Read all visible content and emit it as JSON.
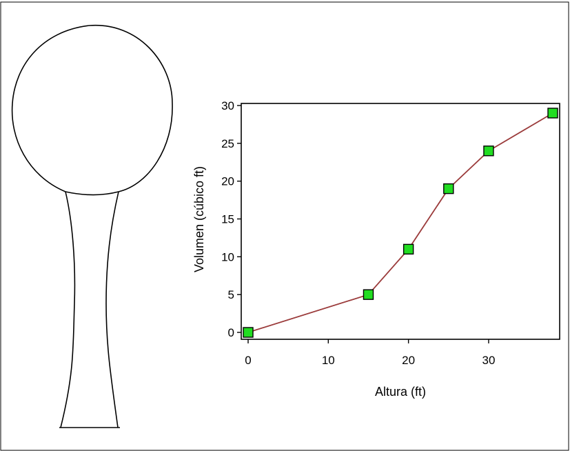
{
  "colors": {
    "line": "#9b3b3b",
    "marker_fill": "#22dd22",
    "marker_stroke": "#000000",
    "axis": "#000000",
    "shape_stroke": "#000000"
  },
  "illustration": {
    "kind": "tank-shape",
    "description_shown": ""
  },
  "chart_data": {
    "type": "line",
    "title": "",
    "xlabel": "Altura (ft)",
    "ylabel": "Volumen (cúbico ft)",
    "xlim": [
      0,
      38
    ],
    "ylim": [
      0,
      30
    ],
    "xticks": [
      0,
      10,
      20,
      30
    ],
    "yticks": [
      0,
      5,
      10,
      15,
      20,
      25,
      30
    ],
    "grid": false,
    "legend": "none",
    "series": [
      {
        "x": [
          0,
          15,
          20,
          25,
          30,
          38
        ],
        "y": [
          0,
          5,
          11,
          19,
          24,
          29
        ]
      }
    ]
  }
}
